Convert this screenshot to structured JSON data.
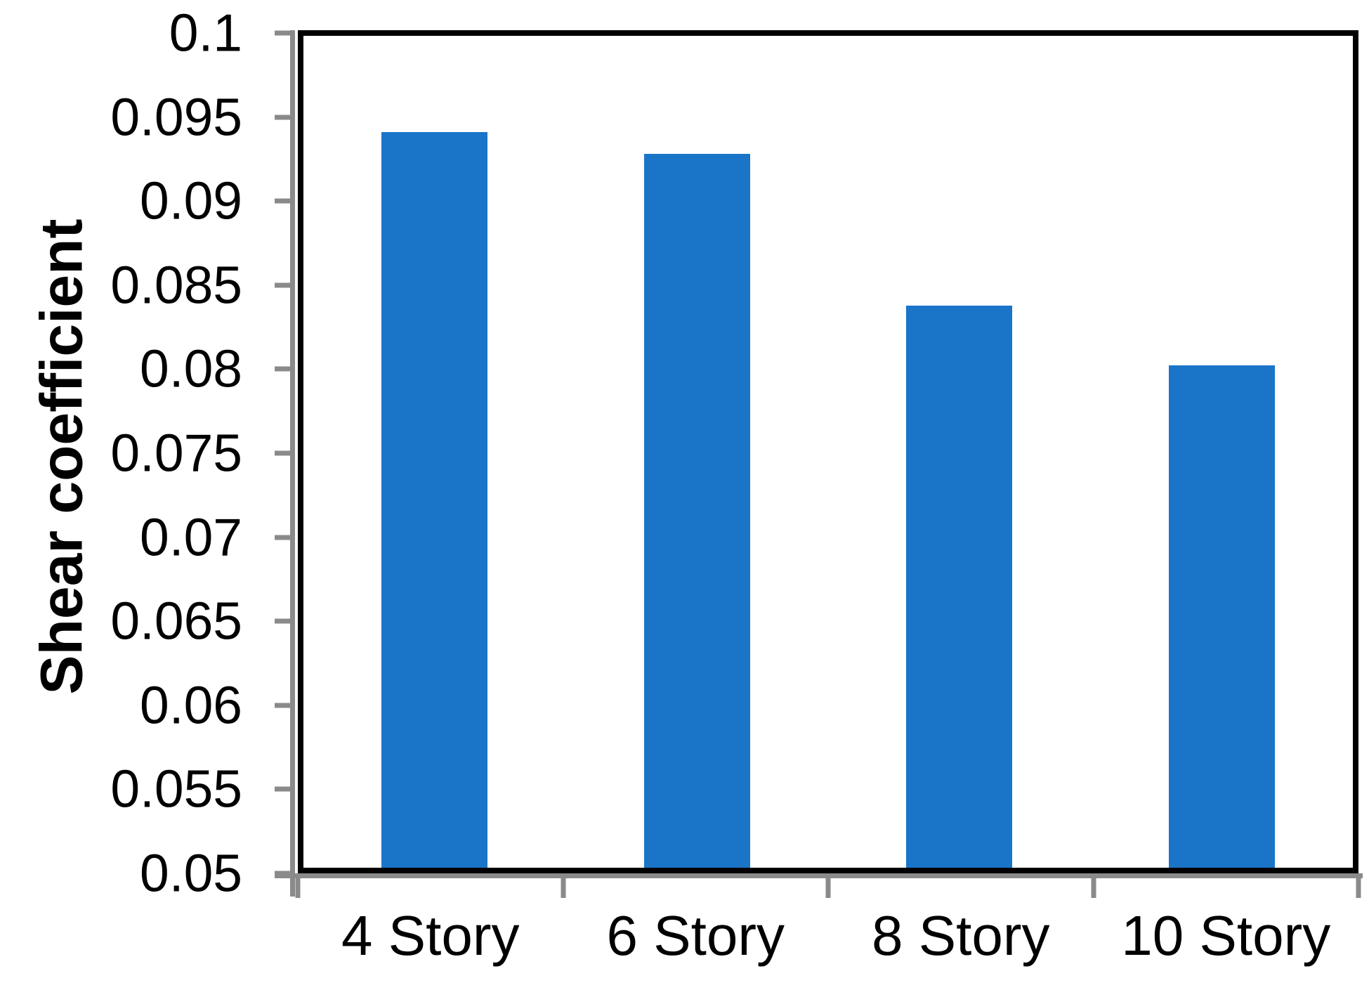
{
  "chart_data": {
    "type": "bar",
    "categories": [
      "4 Story",
      "6 Story",
      "8 Story",
      "10 Story"
    ],
    "values": [
      0.0942,
      0.0929,
      0.0838,
      0.0802
    ],
    "ylabel": "Shear coefficient",
    "xlabel": "",
    "ylim": [
      0.05,
      0.1
    ],
    "ytick_step": 0.005,
    "yticks": [
      0.1,
      0.095,
      0.09,
      0.085,
      0.08,
      0.075,
      0.07,
      0.065,
      0.06,
      0.055,
      0.05
    ],
    "ytick_labels": [
      "0.1",
      "0.095",
      "0.09",
      "0.085",
      "0.08",
      "0.075",
      "0.07",
      "0.065",
      "0.06",
      "0.055",
      "0.05"
    ],
    "grid": false,
    "legend": "none",
    "bar_color": "#1a74c8",
    "axis_color": "#8a8a8a",
    "plot_border_color": "#000000",
    "background_color": "#ffffff"
  }
}
